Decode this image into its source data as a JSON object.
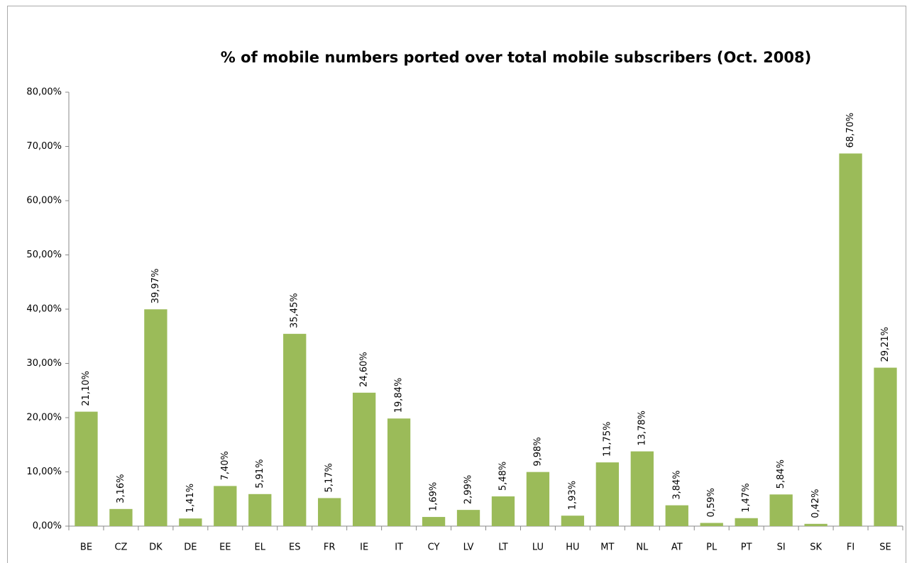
{
  "chart_data": {
    "type": "bar",
    "title": "% of mobile numbers ported over total mobile subscribers (Oct. 2008)",
    "categories": [
      "BE",
      "CZ",
      "DK",
      "DE",
      "EE",
      "EL",
      "ES",
      "FR",
      "IE",
      "IT",
      "CY",
      "LV",
      "LT",
      "LU",
      "HU",
      "MT",
      "NL",
      "AT",
      "PL",
      "PT",
      "SI",
      "SK",
      "FI",
      "SE"
    ],
    "values": [
      21.1,
      3.16,
      39.97,
      1.41,
      7.4,
      5.91,
      35.45,
      5.17,
      24.6,
      19.84,
      1.69,
      2.99,
      5.48,
      9.98,
      1.93,
      11.75,
      13.78,
      3.84,
      0.59,
      1.47,
      5.84,
      0.42,
      68.7,
      29.21
    ],
    "value_labels": [
      "21,10%",
      "3,16%",
      "39,97%",
      "1,41%",
      "7,40%",
      "5,91%",
      "35,45%",
      "5,17%",
      "24,60%",
      "19,84%",
      "1,69%",
      "2,99%",
      "5,48%",
      "9,98%",
      "1,93%",
      "11,75%",
      "13,78%",
      "3,84%",
      "0,59%",
      "1,47%",
      "5,84%",
      "0,42%",
      "68,70%",
      "29,21%"
    ],
    "color": "#9bbb59",
    "ylim": [
      0,
      80
    ],
    "yticks": [
      {
        "value": 0,
        "label": "0,00%"
      },
      {
        "value": 10,
        "label": "10,00%"
      },
      {
        "value": 20,
        "label": "20,00%"
      },
      {
        "value": 30,
        "label": "30,00%"
      },
      {
        "value": 40,
        "label": "40,00%"
      },
      {
        "value": 50,
        "label": "50,00%"
      },
      {
        "value": 60,
        "label": "60,00%"
      },
      {
        "value": 70,
        "label": "70,00%"
      },
      {
        "value": 80,
        "label": "80,00%"
      }
    ],
    "grid": false
  }
}
